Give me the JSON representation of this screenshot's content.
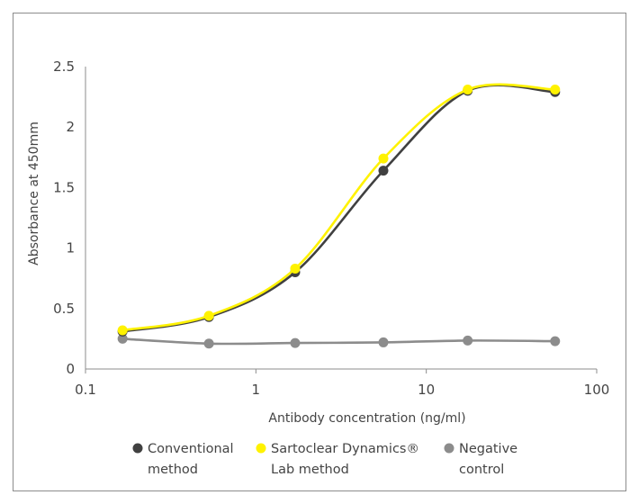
{
  "chart_data": {
    "type": "line",
    "x": [
      0.165,
      0.53,
      1.7,
      5.6,
      17.5,
      57
    ],
    "series": [
      {
        "name": "Conventional method",
        "color": "#404040",
        "values": [
          0.31,
          0.43,
          0.8,
          1.64,
          2.3,
          2.29
        ]
      },
      {
        "name": "Sartoclear Dynamics® Lab method",
        "color": "#fff200",
        "values": [
          0.32,
          0.44,
          0.83,
          1.74,
          2.31,
          2.31
        ]
      },
      {
        "name": "Negative control",
        "color": "#8c8c8c",
        "values": [
          0.25,
          0.21,
          0.215,
          0.22,
          0.235,
          0.23
        ]
      }
    ],
    "xlabel": "Antibody concentration (ng/ml)",
    "ylabel": "Absorbance at 450mm",
    "xscale": "log",
    "xlim": [
      0.1,
      100
    ],
    "ylim": [
      0,
      2.5
    ],
    "x_tick_labels": [
      "0.1",
      "1",
      "10",
      "100"
    ],
    "y_tick_labels": [
      "0",
      "0.5",
      "1",
      "1.5",
      "2",
      "2.5"
    ],
    "grid": false,
    "legend_position": "bottom"
  },
  "legend": {
    "conventional": [
      "Conventional",
      "method"
    ],
    "sartoclear": [
      "Sartoclear Dynamics®",
      "Lab method"
    ],
    "negative": [
      "Negative",
      "control"
    ]
  }
}
